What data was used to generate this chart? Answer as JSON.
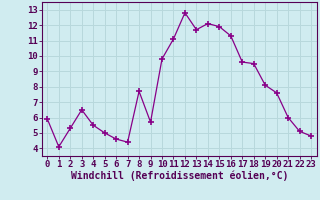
{
  "x": [
    0,
    1,
    2,
    3,
    4,
    5,
    6,
    7,
    8,
    9,
    10,
    11,
    12,
    13,
    14,
    15,
    16,
    17,
    18,
    19,
    20,
    21,
    22,
    23
  ],
  "y": [
    5.9,
    4.1,
    5.3,
    6.5,
    5.5,
    5.0,
    4.6,
    4.4,
    7.7,
    5.7,
    9.8,
    11.1,
    12.8,
    11.7,
    12.1,
    11.9,
    11.3,
    9.6,
    9.5,
    8.1,
    7.6,
    6.0,
    5.1,
    4.8
  ],
  "line_color": "#880088",
  "marker": "+",
  "marker_size": 4,
  "marker_lw": 1.2,
  "bg_color": "#d0ecf0",
  "grid_color": "#b8d8dc",
  "xlabel": "Windchill (Refroidissement éolien,°C)",
  "xlim": [
    -0.5,
    23.5
  ],
  "ylim": [
    3.5,
    13.5
  ],
  "yticks": [
    4,
    5,
    6,
    7,
    8,
    9,
    10,
    11,
    12,
    13
  ],
  "xticks": [
    0,
    1,
    2,
    3,
    4,
    5,
    6,
    7,
    8,
    9,
    10,
    11,
    12,
    13,
    14,
    15,
    16,
    17,
    18,
    19,
    20,
    21,
    22,
    23
  ],
  "tick_label_fontsize": 6.5,
  "xlabel_fontsize": 7.0,
  "axis_label_color": "#550055",
  "linewidth": 0.9
}
